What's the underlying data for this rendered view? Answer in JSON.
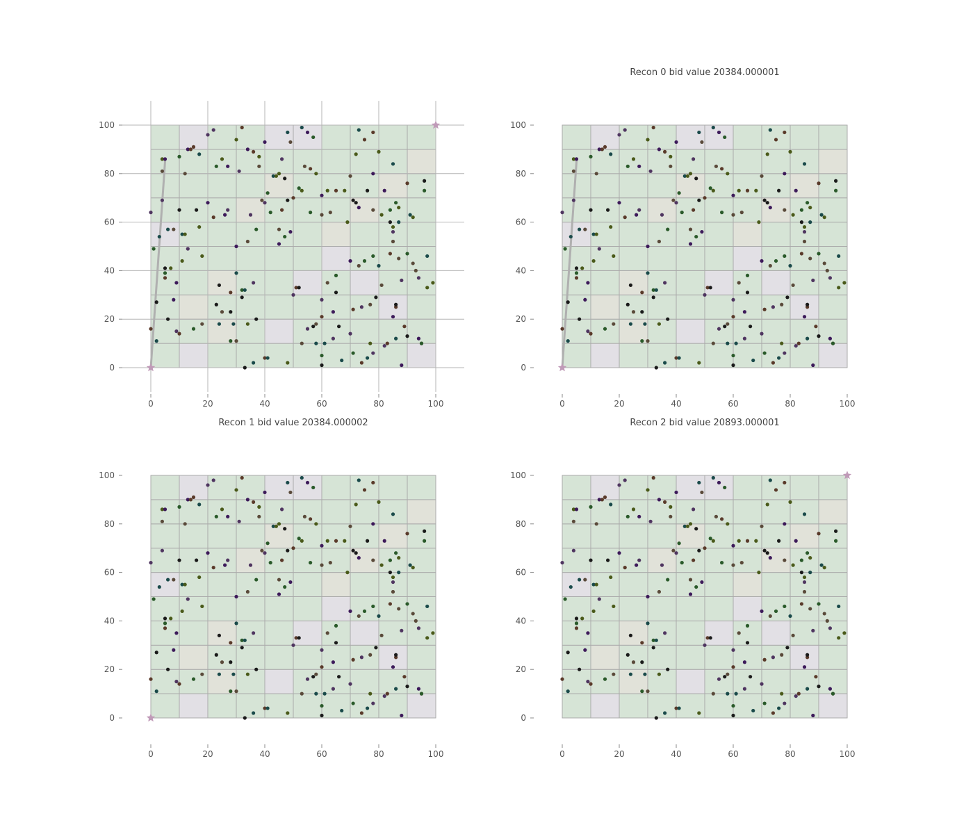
{
  "colors": {
    "cell_green": "#d6e4d6",
    "cell_gray": "#e2e0e5",
    "cell_beige": "#e1e2d9",
    "cell_border": "#aaaaaa",
    "grid": "#b4b4b4",
    "path": "#b0b0b0",
    "start_marker": "#c09ab8",
    "end_marker": "#c09ab8",
    "point_palette": [
      "#4f3560",
      "#3d1a5a",
      "#5a4a3a",
      "#4a5a1a",
      "#1a4a4a",
      "#1a1a1a",
      "#2a5a2a",
      "#5a3a2a"
    ]
  },
  "chart_data": [
    {
      "type": "scatter",
      "title": "",
      "xlim": [
        -10,
        110
      ],
      "ylim": [
        -10,
        110
      ],
      "xticks": [
        0,
        20,
        40,
        60,
        80,
        100
      ],
      "yticks": [
        0,
        20,
        40,
        60,
        80,
        100
      ],
      "grid": true,
      "grid_divisions": 10,
      "gray_cells": [
        [
          1,
          9
        ],
        [
          4,
          9
        ],
        [
          5,
          9
        ],
        [
          0,
          5
        ],
        [
          1,
          0
        ],
        [
          4,
          1
        ],
        [
          5,
          3
        ],
        [
          6,
          4
        ],
        [
          7,
          3
        ],
        [
          8,
          2
        ],
        [
          9,
          0
        ],
        [
          10,
          9
        ]
      ],
      "beige_cells": [
        [
          2,
          1
        ],
        [
          3,
          6
        ],
        [
          4,
          7
        ],
        [
          6,
          5
        ],
        [
          7,
          6
        ],
        [
          9,
          8
        ],
        [
          10,
          6
        ],
        [
          1,
          2
        ],
        [
          2,
          3
        ],
        [
          8,
          7
        ]
      ],
      "path": [
        [
          0,
          0
        ],
        [
          5,
          85
        ]
      ],
      "markers": [
        {
          "x": 0,
          "y": 0,
          "kind": "start"
        },
        {
          "x": 100,
          "y": 100,
          "kind": "end"
        }
      ]
    },
    {
      "type": "scatter",
      "title": "Recon 0 bid value 20384.000001",
      "xlim": [
        -10,
        110
      ],
      "ylim": [
        -10,
        110
      ],
      "xticks": [
        0,
        20,
        40,
        60,
        80,
        100
      ],
      "yticks": [
        0,
        20,
        40,
        60,
        80,
        100
      ],
      "grid": false,
      "path": [
        [
          0,
          0
        ],
        [
          5,
          85
        ]
      ],
      "markers": [
        {
          "x": 0,
          "y": 0,
          "kind": "start"
        }
      ]
    },
    {
      "type": "scatter",
      "title": "Recon 1 bid value 20384.000002",
      "xlim": [
        -10,
        110
      ],
      "ylim": [
        -10,
        110
      ],
      "xticks": [
        0,
        20,
        40,
        60,
        80,
        100
      ],
      "yticks": [
        0,
        20,
        40,
        60,
        80,
        100
      ],
      "grid": false,
      "path": [],
      "markers": [
        {
          "x": 0,
          "y": 0,
          "kind": "start"
        }
      ]
    },
    {
      "type": "scatter",
      "title": "Recon 2 bid value 20893.000001",
      "xlim": [
        -10,
        110
      ],
      "ylim": [
        -10,
        110
      ],
      "xticks": [
        0,
        20,
        40,
        60,
        80,
        100
      ],
      "yticks": [
        0,
        20,
        40,
        60,
        80,
        100
      ],
      "grid": false,
      "path": [],
      "markers": [
        {
          "x": 100,
          "y": 100,
          "kind": "end"
        }
      ]
    }
  ],
  "scatter_points": [
    [
      0,
      64
    ],
    [
      0,
      16
    ],
    [
      1,
      49
    ],
    [
      2,
      27
    ],
    [
      2,
      11
    ],
    [
      3,
      54
    ],
    [
      4,
      86
    ],
    [
      4,
      81
    ],
    [
      5,
      86
    ],
    [
      4,
      69
    ],
    [
      5,
      37
    ],
    [
      5,
      39
    ],
    [
      5,
      41
    ],
    [
      6,
      20
    ],
    [
      6,
      57
    ],
    [
      7,
      41
    ],
    [
      8,
      57
    ],
    [
      8,
      28
    ],
    [
      9,
      35
    ],
    [
      9,
      15
    ],
    [
      10,
      14
    ],
    [
      10,
      87
    ],
    [
      10,
      65
    ],
    [
      11,
      55
    ],
    [
      11,
      44
    ],
    [
      12,
      55
    ],
    [
      12,
      80
    ],
    [
      13,
      90
    ],
    [
      13,
      49
    ],
    [
      14,
      90
    ],
    [
      15,
      91
    ],
    [
      15,
      16
    ],
    [
      16,
      65
    ],
    [
      17,
      88
    ],
    [
      17,
      58
    ],
    [
      18,
      46
    ],
    [
      18,
      18
    ],
    [
      20,
      68
    ],
    [
      20,
      96
    ],
    [
      22,
      98
    ],
    [
      22,
      62
    ],
    [
      23,
      83
    ],
    [
      23,
      26
    ],
    [
      24,
      34
    ],
    [
      24,
      18
    ],
    [
      25,
      86
    ],
    [
      25,
      23
    ],
    [
      26,
      63
    ],
    [
      27,
      83
    ],
    [
      27,
      65
    ],
    [
      28,
      31
    ],
    [
      28,
      11
    ],
    [
      28,
      23
    ],
    [
      29,
      18
    ],
    [
      30,
      39
    ],
    [
      30,
      94
    ],
    [
      30,
      11
    ],
    [
      30,
      50
    ],
    [
      31,
      81
    ],
    [
      32,
      99
    ],
    [
      32,
      32
    ],
    [
      32,
      29
    ],
    [
      33,
      0
    ],
    [
      33,
      32
    ],
    [
      34,
      18
    ],
    [
      34,
      52
    ],
    [
      34,
      90
    ],
    [
      35,
      63
    ],
    [
      36,
      35
    ],
    [
      36,
      89
    ],
    [
      37,
      57
    ],
    [
      37,
      20
    ],
    [
      36,
      2
    ],
    [
      38,
      87
    ],
    [
      38,
      83
    ],
    [
      39,
      69
    ],
    [
      40,
      93
    ],
    [
      40,
      68
    ],
    [
      40,
      4
    ],
    [
      41,
      72
    ],
    [
      42,
      64
    ],
    [
      41,
      4
    ],
    [
      43,
      79
    ],
    [
      44,
      79
    ],
    [
      45,
      80
    ],
    [
      45,
      57
    ],
    [
      45,
      51
    ],
    [
      46,
      86
    ],
    [
      46,
      65
    ],
    [
      47,
      54
    ],
    [
      47,
      78
    ],
    [
      48,
      69
    ],
    [
      48,
      97
    ],
    [
      48,
      2
    ],
    [
      49,
      93
    ],
    [
      49,
      56
    ],
    [
      50,
      30
    ],
    [
      50,
      70
    ],
    [
      51,
      33
    ],
    [
      52,
      74
    ],
    [
      52,
      33
    ],
    [
      53,
      99
    ],
    [
      53,
      73
    ],
    [
      53,
      10
    ],
    [
      54,
      83
    ],
    [
      55,
      97
    ],
    [
      55,
      16
    ],
    [
      56,
      82
    ],
    [
      56,
      64
    ],
    [
      57,
      95
    ],
    [
      57,
      17
    ],
    [
      58,
      10
    ],
    [
      58,
      80
    ],
    [
      58,
      18
    ],
    [
      60,
      63
    ],
    [
      60,
      71
    ],
    [
      60,
      28
    ],
    [
      60,
      21
    ],
    [
      60,
      5
    ],
    [
      60,
      1
    ],
    [
      61,
      10
    ],
    [
      62,
      73
    ],
    [
      62,
      35
    ],
    [
      63,
      64
    ],
    [
      64,
      23
    ],
    [
      64,
      12
    ],
    [
      65,
      73
    ],
    [
      65,
      38
    ],
    [
      65,
      31
    ],
    [
      66,
      17
    ],
    [
      67,
      3
    ],
    [
      68,
      73
    ],
    [
      69,
      60
    ],
    [
      70,
      79
    ],
    [
      70,
      44
    ],
    [
      70,
      14
    ],
    [
      71,
      24
    ],
    [
      71,
      6
    ],
    [
      71,
      69
    ],
    [
      72,
      68
    ],
    [
      73,
      98
    ],
    [
      72,
      88
    ],
    [
      73,
      42
    ],
    [
      73,
      66
    ],
    [
      74,
      25
    ],
    [
      74,
      2
    ],
    [
      75,
      94
    ],
    [
      75,
      44
    ],
    [
      76,
      73
    ],
    [
      76,
      4
    ],
    [
      77,
      10
    ],
    [
      77,
      26
    ],
    [
      78,
      65
    ],
    [
      78,
      80
    ],
    [
      78,
      6
    ],
    [
      78,
      97
    ],
    [
      78,
      46
    ],
    [
      79,
      29
    ],
    [
      80,
      42
    ],
    [
      80,
      89
    ],
    [
      81,
      63
    ],
    [
      81,
      34
    ],
    [
      82,
      73
    ],
    [
      82,
      9
    ],
    [
      83,
      10
    ],
    [
      84,
      47
    ],
    [
      84,
      65
    ],
    [
      84,
      60
    ],
    [
      85,
      84
    ],
    [
      85,
      58
    ],
    [
      85,
      52
    ],
    [
      85,
      21
    ],
    [
      85,
      56
    ],
    [
      86,
      25
    ],
    [
      86,
      68
    ],
    [
      86,
      26
    ],
    [
      86,
      12
    ],
    [
      87,
      60
    ],
    [
      87,
      66
    ],
    [
      87,
      45
    ],
    [
      88,
      1
    ],
    [
      88,
      36
    ],
    [
      89,
      17
    ],
    [
      90,
      76
    ],
    [
      90,
      47
    ],
    [
      90,
      13
    ],
    [
      91,
      63
    ],
    [
      92,
      62
    ],
    [
      92,
      43
    ],
    [
      93,
      40
    ],
    [
      94,
      12
    ],
    [
      94,
      37
    ],
    [
      95,
      10
    ],
    [
      95,
      10
    ],
    [
      96,
      73
    ],
    [
      96,
      77
    ],
    [
      97,
      46
    ],
    [
      97,
      33
    ],
    [
      99,
      35
    ]
  ]
}
